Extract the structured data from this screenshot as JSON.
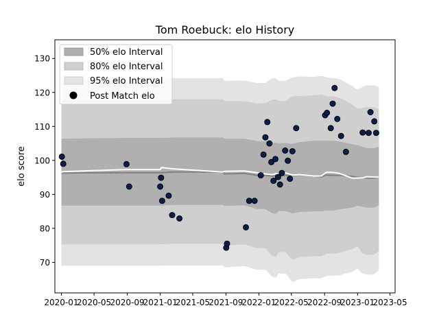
{
  "chart_data": {
    "type": "scatter",
    "title": "Tom Roebuck: elo History",
    "xlabel": "",
    "ylabel": "elo score",
    "xlim": [
      "2019-12-08",
      "2023-05-20"
    ],
    "ylim": [
      61,
      135.5
    ],
    "x_ticks": [
      "2020-01",
      "2020-05",
      "2020-09",
      "2021-01",
      "2021-05",
      "2021-09",
      "2022-01",
      "2022-05",
      "2022-09",
      "2023-01",
      "2023-05"
    ],
    "y_ticks": [
      70,
      80,
      90,
      100,
      110,
      120,
      130
    ],
    "grid": false,
    "legend_position": "top-left",
    "legend": [
      "50% elo Interval",
      "80% elo Interval",
      "95% elo Interval",
      "Post Match elo"
    ],
    "colors": {
      "band_50": "#b0b0b0",
      "band_80": "#cfcfcf",
      "band_95": "#e3e3e3",
      "median_line": "#808080",
      "mean_line": "#ffffff",
      "points": "#0b1f4d"
    },
    "bands": {
      "dates": [
        "2020-01-01",
        "2020-01-06",
        "2020-08-22",
        "2020-09-01",
        "2021-01-01",
        "2021-01-06",
        "2021-02-20",
        "2021-08-20",
        "2021-08-27",
        "2021-11-08",
        "2021-12-25",
        "2022-01-25",
        "2022-02-20",
        "2022-03-05",
        "2022-03-15",
        "2022-04-10",
        "2022-05-05",
        "2022-06-01",
        "2022-07-25",
        "2022-08-20",
        "2022-09-07",
        "2022-10-01",
        "2022-10-25",
        "2022-12-12",
        "2023-01-01",
        "2023-01-20",
        "2023-02-05",
        "2023-03-02",
        "2023-03-21"
      ],
      "p2_5": [
        68.8,
        69.0,
        69.0,
        69.0,
        69.0,
        69.0,
        69.1,
        69.1,
        68.5,
        68.9,
        67.8,
        67.8,
        65.7,
        65.5,
        66.7,
        66.7,
        64.2,
        65.1,
        65.3,
        65.3,
        65.9,
        66.1,
        66.1,
        67.2,
        68.1,
        66.6,
        66.4,
        66.4,
        67.6
      ],
      "p10": [
        75.1,
        75.3,
        75.3,
        75.3,
        75.3,
        75.3,
        75.5,
        75.5,
        75.0,
        75.3,
        74.2,
        74.2,
        71.8,
        71.6,
        73.0,
        73.0,
        70.7,
        71.6,
        71.8,
        71.8,
        72.5,
        72.5,
        72.8,
        73.9,
        74.7,
        72.6,
        72.2,
        72.2,
        73.3
      ],
      "p25": [
        86.7,
        86.7,
        86.7,
        86.7,
        86.7,
        86.7,
        86.9,
        86.9,
        86.6,
        86.8,
        85.7,
        85.7,
        84.4,
        84.3,
        85.1,
        85.1,
        84.4,
        84.8,
        85.0,
        85.0,
        85.2,
        85.2,
        85.6,
        86.1,
        86.7,
        86.3,
        86.1,
        86.1,
        86.8
      ],
      "median": [
        96.2,
        96.3,
        96.4,
        96.4,
        96.4,
        96.4,
        96.6,
        96.6,
        96.0,
        96.2,
        95.6,
        95.6,
        95.4,
        95.4,
        95.6,
        95.6,
        95.6,
        95.7,
        95.4,
        95.1,
        95.7,
        95.6,
        95.6,
        95.3,
        95.0,
        95.0,
        94.8,
        94.8,
        95.1
      ],
      "p75": [
        106.4,
        106.4,
        106.6,
        106.6,
        106.6,
        106.6,
        106.8,
        106.8,
        106.4,
        106.4,
        105.7,
        105.7,
        105.2,
        105.2,
        105.1,
        105.1,
        104.9,
        105.4,
        105.8,
        105.8,
        105.8,
        105.8,
        105.6,
        104.8,
        104.5,
        104.0,
        103.6,
        103.6,
        104.0
      ],
      "p90": [
        117.5,
        117.5,
        117.8,
        117.8,
        117.8,
        117.8,
        118.0,
        118.0,
        117.5,
        117.4,
        116.8,
        116.8,
        117.9,
        118.0,
        117.5,
        117.5,
        118.9,
        118.9,
        119.2,
        119.4,
        118.9,
        118.9,
        118.5,
        116.5,
        115.2,
        115.5,
        115.7,
        115.7,
        115.1
      ],
      "p97_5": [
        123.4,
        123.4,
        123.7,
        123.7,
        123.7,
        123.7,
        124.2,
        124.2,
        123.4,
        123.5,
        122.8,
        122.8,
        124.2,
        124.2,
        123.4,
        123.4,
        124.4,
        124.7,
        124.6,
        124.9,
        124.5,
        124.2,
        124.0,
        121.9,
        120.8,
        121.7,
        122.1,
        122.1,
        121.6
      ],
      "mean": [
        96.4,
        96.7,
        97.3,
        97.3,
        97.3,
        97.9,
        97.5,
        96.6,
        96.8,
        96.9,
        96.4,
        96.0,
        95.8,
        96.1,
        96.0,
        96.3,
        95.7,
        95.8,
        95.4,
        95.4,
        96.5,
        96.5,
        96.2,
        94.8,
        94.8,
        94.9,
        95.2,
        95.1,
        95.1
      ]
    },
    "points": {
      "x": [
        "2020-01-03",
        "2020-01-08",
        "2020-08-29",
        "2020-09-08",
        "2021-01-01",
        "2021-01-04",
        "2021-01-08",
        "2021-02-01",
        "2021-02-14",
        "2021-03-13",
        "2021-09-02",
        "2021-09-05",
        "2021-11-14",
        "2021-11-26",
        "2021-12-16",
        "2022-01-08",
        "2022-01-18",
        "2022-01-25",
        "2022-02-01",
        "2022-02-09",
        "2022-02-16",
        "2022-02-24",
        "2022-03-03",
        "2022-03-13",
        "2022-03-20",
        "2022-03-27",
        "2022-04-08",
        "2022-04-18",
        "2022-04-26",
        "2022-05-05",
        "2022-05-19",
        "2022-09-03",
        "2022-09-10",
        "2022-09-24",
        "2022-10-01",
        "2022-10-08",
        "2022-10-18",
        "2022-11-01",
        "2022-11-19",
        "2023-01-20",
        "2023-02-11",
        "2023-02-18",
        "2023-03-04",
        "2023-03-11"
      ],
      "y": [
        101.1,
        99.0,
        98.9,
        92.3,
        92.3,
        94.9,
        88.1,
        89.6,
        83.9,
        82.9,
        74.3,
        75.5,
        80.3,
        88.1,
        88.1,
        95.6,
        101.7,
        106.8,
        111.3,
        105.0,
        99.5,
        94.0,
        100.4,
        95.1,
        92.9,
        96.3,
        102.9,
        99.9,
        94.6,
        102.7,
        109.5,
        113.3,
        114.0,
        109.5,
        116.7,
        121.3,
        112.2,
        107.2,
        102.5,
        108.2,
        108.1,
        114.2,
        111.5,
        108.1
      ]
    }
  }
}
